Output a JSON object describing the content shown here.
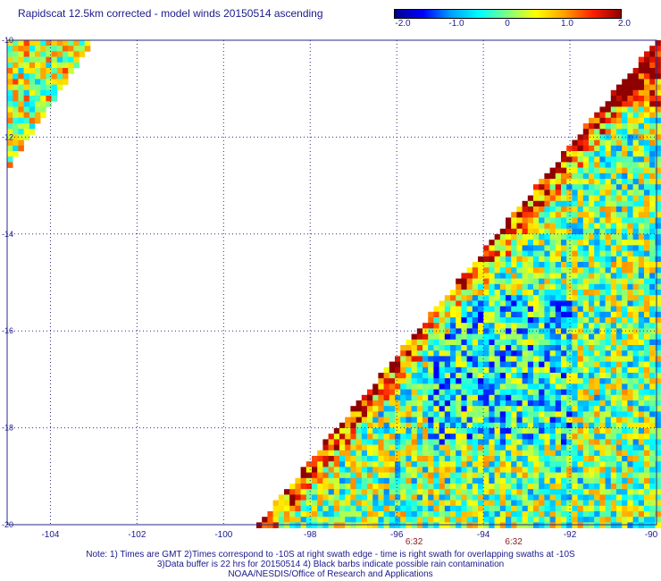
{
  "title": "Rapidscat 12.5km corrected - model winds 20150514 ascending",
  "colorbar": {
    "labels": [
      "-2.0",
      "-1.0",
      "0",
      "1.0",
      "2.0"
    ],
    "range": [
      -2.0,
      2.0
    ],
    "colors": [
      "#00008f",
      "#0000ff",
      "#00a0ff",
      "#00ffff",
      "#80ff80",
      "#ffff00",
      "#ffa000",
      "#ff2000",
      "#8f0000"
    ]
  },
  "map": {
    "lon_ticks": [
      "-104",
      "-102",
      "-100",
      "-98",
      "-96",
      "-94",
      "-92",
      "-90"
    ],
    "lat_ticks": [
      "-10",
      "-12",
      "-14",
      "-16",
      "-18",
      "-20"
    ],
    "lon_range": [
      -105,
      -90
    ],
    "lat_range": [
      -20,
      -10
    ],
    "grid": "dotted",
    "swath_times": [
      {
        "label": "6:32",
        "lon": -95.6
      },
      {
        "label": "6:32",
        "lon": -93.3
      }
    ],
    "field": "wind speed difference (m/s)"
  },
  "notes": [
    "Note: 1) Times are GMT 2)Times correspond to -10S at right swath edge - time is right swath for overlapping swaths at -10S",
    "3)Data buffer is 22 hrs for 20150514 4) Black barbs indicate possible rain contamination",
    "NOAA/NESDIS/Office of Research and Applications"
  ]
}
